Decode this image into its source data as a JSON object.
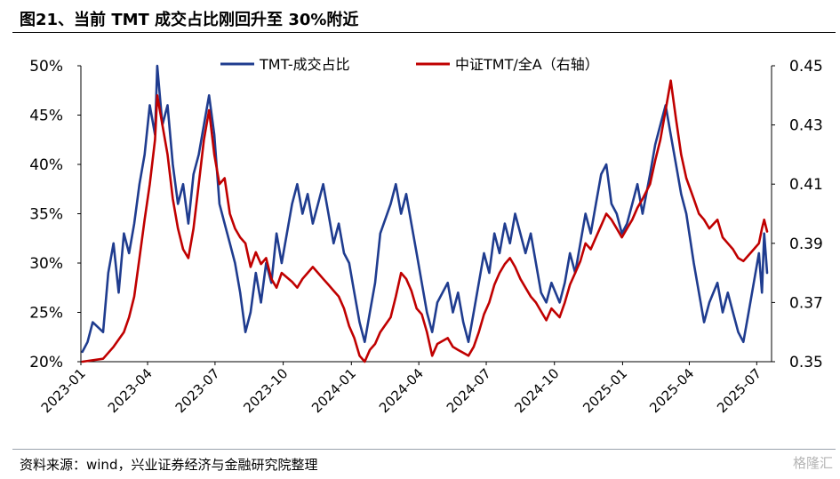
{
  "title": "图21、当前 TMT 成交占比刚回升至 30%附近",
  "source": "资料来源：wind，兴业证券经济与金融研究院整理",
  "watermark": "格隆汇",
  "chart_data": {
    "type": "line",
    "title": "图21、当前 TMT 成交占比刚回升至 30%附近",
    "x_ticks": [
      "2023-01",
      "2023-04",
      "2023-07",
      "2023-10",
      "2024-01",
      "2024-04",
      "2024-07",
      "2024-10",
      "2025-01",
      "2025-04",
      "2025-07"
    ],
    "x_range": [
      "2023-01",
      "2025-07"
    ],
    "y_left": {
      "ticks": [
        "20%",
        "25%",
        "30%",
        "35%",
        "40%",
        "45%",
        "50%"
      ],
      "range": [
        0.2,
        0.5
      ]
    },
    "y_right": {
      "ticks": [
        "0.35",
        "0.37",
        "0.39",
        "0.41",
        "0.43",
        "0.45"
      ],
      "range": [
        0.35,
        0.45
      ]
    },
    "legend_position": "top-center",
    "grid": false,
    "series": [
      {
        "name": "TMT-成交占比",
        "axis": "left",
        "color": "#1f3c8f",
        "points": [
          [
            "2023-01-03",
            0.21
          ],
          [
            "2023-01-10",
            0.22
          ],
          [
            "2023-01-17",
            0.24
          ],
          [
            "2023-01-31",
            0.23
          ],
          [
            "2023-02-07",
            0.29
          ],
          [
            "2023-02-14",
            0.32
          ],
          [
            "2023-02-21",
            0.27
          ],
          [
            "2023-02-28",
            0.33
          ],
          [
            "2023-03-07",
            0.31
          ],
          [
            "2023-03-14",
            0.34
          ],
          [
            "2023-03-21",
            0.38
          ],
          [
            "2023-03-28",
            0.41
          ],
          [
            "2023-04-04",
            0.46
          ],
          [
            "2023-04-11",
            0.43
          ],
          [
            "2023-04-14",
            0.5
          ],
          [
            "2023-04-21",
            0.44
          ],
          [
            "2023-04-28",
            0.46
          ],
          [
            "2023-05-05",
            0.4
          ],
          [
            "2023-05-12",
            0.36
          ],
          [
            "2023-05-19",
            0.38
          ],
          [
            "2023-05-26",
            0.34
          ],
          [
            "2023-06-02",
            0.39
          ],
          [
            "2023-06-09",
            0.41
          ],
          [
            "2023-06-16",
            0.44
          ],
          [
            "2023-06-23",
            0.47
          ],
          [
            "2023-06-30",
            0.43
          ],
          [
            "2023-07-07",
            0.36
          ],
          [
            "2023-07-14",
            0.34
          ],
          [
            "2023-07-21",
            0.32
          ],
          [
            "2023-07-28",
            0.3
          ],
          [
            "2023-08-04",
            0.27
          ],
          [
            "2023-08-11",
            0.23
          ],
          [
            "2023-08-18",
            0.25
          ],
          [
            "2023-08-25",
            0.29
          ],
          [
            "2023-09-01",
            0.26
          ],
          [
            "2023-09-08",
            0.3
          ],
          [
            "2023-09-15",
            0.28
          ],
          [
            "2023-09-22",
            0.33
          ],
          [
            "2023-09-29",
            0.3
          ],
          [
            "2023-10-13",
            0.36
          ],
          [
            "2023-10-20",
            0.38
          ],
          [
            "2023-10-27",
            0.35
          ],
          [
            "2023-11-03",
            0.37
          ],
          [
            "2023-11-10",
            0.34
          ],
          [
            "2023-11-17",
            0.36
          ],
          [
            "2023-11-24",
            0.38
          ],
          [
            "2023-12-01",
            0.35
          ],
          [
            "2023-12-08",
            0.32
          ],
          [
            "2023-12-15",
            0.34
          ],
          [
            "2023-12-22",
            0.31
          ],
          [
            "2023-12-29",
            0.3
          ],
          [
            "2024-01-05",
            0.27
          ],
          [
            "2024-01-12",
            0.24
          ],
          [
            "2024-01-19",
            0.22
          ],
          [
            "2024-01-26",
            0.25
          ],
          [
            "2024-02-02",
            0.28
          ],
          [
            "2024-02-09",
            0.33
          ],
          [
            "2024-02-23",
            0.36
          ],
          [
            "2024-03-01",
            0.38
          ],
          [
            "2024-03-08",
            0.35
          ],
          [
            "2024-03-15",
            0.37
          ],
          [
            "2024-03-22",
            0.34
          ],
          [
            "2024-03-29",
            0.31
          ],
          [
            "2024-04-05",
            0.28
          ],
          [
            "2024-04-12",
            0.25
          ],
          [
            "2024-04-19",
            0.23
          ],
          [
            "2024-04-26",
            0.26
          ],
          [
            "2024-05-10",
            0.28
          ],
          [
            "2024-05-17",
            0.25
          ],
          [
            "2024-05-24",
            0.27
          ],
          [
            "2024-05-31",
            0.24
          ],
          [
            "2024-06-07",
            0.22
          ],
          [
            "2024-06-14",
            0.25
          ],
          [
            "2024-06-21",
            0.28
          ],
          [
            "2024-06-28",
            0.31
          ],
          [
            "2024-07-05",
            0.29
          ],
          [
            "2024-07-12",
            0.33
          ],
          [
            "2024-07-19",
            0.31
          ],
          [
            "2024-07-26",
            0.34
          ],
          [
            "2024-08-02",
            0.32
          ],
          [
            "2024-08-09",
            0.35
          ],
          [
            "2024-08-16",
            0.33
          ],
          [
            "2024-08-23",
            0.31
          ],
          [
            "2024-08-30",
            0.33
          ],
          [
            "2024-09-06",
            0.3
          ],
          [
            "2024-09-13",
            0.27
          ],
          [
            "2024-09-20",
            0.26
          ],
          [
            "2024-09-27",
            0.28
          ],
          [
            "2024-10-08",
            0.26
          ],
          [
            "2024-10-15",
            0.28
          ],
          [
            "2024-10-22",
            0.31
          ],
          [
            "2024-10-29",
            0.29
          ],
          [
            "2024-11-05",
            0.32
          ],
          [
            "2024-11-12",
            0.35
          ],
          [
            "2024-11-19",
            0.33
          ],
          [
            "2024-11-26",
            0.36
          ],
          [
            "2024-12-03",
            0.39
          ],
          [
            "2024-12-10",
            0.4
          ],
          [
            "2024-12-17",
            0.36
          ],
          [
            "2024-12-24",
            0.35
          ],
          [
            "2024-12-31",
            0.33
          ],
          [
            "2025-01-07",
            0.34
          ],
          [
            "2025-01-14",
            0.36
          ],
          [
            "2025-01-21",
            0.38
          ],
          [
            "2025-01-28",
            0.35
          ],
          [
            "2025-02-07",
            0.39
          ],
          [
            "2025-02-14",
            0.42
          ],
          [
            "2025-02-21",
            0.44
          ],
          [
            "2025-02-28",
            0.46
          ],
          [
            "2025-03-07",
            0.43
          ],
          [
            "2025-03-14",
            0.4
          ],
          [
            "2025-03-21",
            0.37
          ],
          [
            "2025-03-28",
            0.35
          ],
          [
            "2025-04-07",
            0.3
          ],
          [
            "2025-04-14",
            0.27
          ],
          [
            "2025-04-21",
            0.24
          ],
          [
            "2025-04-28",
            0.26
          ],
          [
            "2025-05-09",
            0.28
          ],
          [
            "2025-05-16",
            0.25
          ],
          [
            "2025-05-23",
            0.27
          ],
          [
            "2025-05-30",
            0.25
          ],
          [
            "2025-06-06",
            0.23
          ],
          [
            "2025-06-13",
            0.22
          ],
          [
            "2025-06-20",
            0.25
          ],
          [
            "2025-06-27",
            0.28
          ],
          [
            "2025-07-04",
            0.31
          ],
          [
            "2025-07-08",
            0.27
          ],
          [
            "2025-07-11",
            0.33
          ],
          [
            "2025-07-15",
            0.29
          ]
        ]
      },
      {
        "name": "中证TMT/全A（右轴）",
        "axis": "right",
        "color": "#c00000",
        "points": [
          [
            "2023-01-03",
            0.349
          ],
          [
            "2023-01-31",
            0.351
          ],
          [
            "2023-02-14",
            0.355
          ],
          [
            "2023-02-28",
            0.36
          ],
          [
            "2023-03-07",
            0.365
          ],
          [
            "2023-03-14",
            0.372
          ],
          [
            "2023-03-21",
            0.385
          ],
          [
            "2023-03-28",
            0.398
          ],
          [
            "2023-04-04",
            0.41
          ],
          [
            "2023-04-11",
            0.425
          ],
          [
            "2023-04-14",
            0.44
          ],
          [
            "2023-04-21",
            0.43
          ],
          [
            "2023-04-28",
            0.42
          ],
          [
            "2023-05-05",
            0.405
          ],
          [
            "2023-05-12",
            0.395
          ],
          [
            "2023-05-19",
            0.388
          ],
          [
            "2023-05-26",
            0.385
          ],
          [
            "2023-06-02",
            0.395
          ],
          [
            "2023-06-09",
            0.41
          ],
          [
            "2023-06-16",
            0.425
          ],
          [
            "2023-06-23",
            0.435
          ],
          [
            "2023-06-30",
            0.42
          ],
          [
            "2023-07-07",
            0.41
          ],
          [
            "2023-07-14",
            0.412
          ],
          [
            "2023-07-21",
            0.4
          ],
          [
            "2023-07-28",
            0.395
          ],
          [
            "2023-08-04",
            0.392
          ],
          [
            "2023-08-11",
            0.39
          ],
          [
            "2023-08-18",
            0.382
          ],
          [
            "2023-08-25",
            0.387
          ],
          [
            "2023-09-01",
            0.383
          ],
          [
            "2023-09-08",
            0.385
          ],
          [
            "2023-09-15",
            0.378
          ],
          [
            "2023-09-22",
            0.375
          ],
          [
            "2023-09-29",
            0.38
          ],
          [
            "2023-10-13",
            0.377
          ],
          [
            "2023-10-20",
            0.375
          ],
          [
            "2023-10-27",
            0.378
          ],
          [
            "2023-11-03",
            0.38
          ],
          [
            "2023-11-10",
            0.382
          ],
          [
            "2023-11-17",
            0.38
          ],
          [
            "2023-11-24",
            0.378
          ],
          [
            "2023-12-01",
            0.376
          ],
          [
            "2023-12-08",
            0.374
          ],
          [
            "2023-12-15",
            0.372
          ],
          [
            "2023-12-22",
            0.368
          ],
          [
            "2023-12-29",
            0.362
          ],
          [
            "2024-01-05",
            0.358
          ],
          [
            "2024-01-12",
            0.352
          ],
          [
            "2024-01-19",
            0.35
          ],
          [
            "2024-01-26",
            0.354
          ],
          [
            "2024-02-02",
            0.356
          ],
          [
            "2024-02-09",
            0.36
          ],
          [
            "2024-02-23",
            0.365
          ],
          [
            "2024-03-01",
            0.372
          ],
          [
            "2024-03-08",
            0.38
          ],
          [
            "2024-03-15",
            0.378
          ],
          [
            "2024-03-22",
            0.374
          ],
          [
            "2024-03-29",
            0.368
          ],
          [
            "2024-04-05",
            0.366
          ],
          [
            "2024-04-12",
            0.36
          ],
          [
            "2024-04-19",
            0.352
          ],
          [
            "2024-04-26",
            0.356
          ],
          [
            "2024-05-10",
            0.358
          ],
          [
            "2024-05-17",
            0.355
          ],
          [
            "2024-05-24",
            0.354
          ],
          [
            "2024-05-31",
            0.353
          ],
          [
            "2024-06-07",
            0.352
          ],
          [
            "2024-06-14",
            0.355
          ],
          [
            "2024-06-21",
            0.36
          ],
          [
            "2024-06-28",
            0.366
          ],
          [
            "2024-07-05",
            0.37
          ],
          [
            "2024-07-12",
            0.376
          ],
          [
            "2024-07-19",
            0.38
          ],
          [
            "2024-07-26",
            0.383
          ],
          [
            "2024-08-02",
            0.385
          ],
          [
            "2024-08-09",
            0.382
          ],
          [
            "2024-08-16",
            0.378
          ],
          [
            "2024-08-23",
            0.375
          ],
          [
            "2024-08-30",
            0.372
          ],
          [
            "2024-09-06",
            0.37
          ],
          [
            "2024-09-13",
            0.367
          ],
          [
            "2024-09-20",
            0.364
          ],
          [
            "2024-09-27",
            0.368
          ],
          [
            "2024-10-08",
            0.365
          ],
          [
            "2024-10-15",
            0.37
          ],
          [
            "2024-10-22",
            0.376
          ],
          [
            "2024-10-29",
            0.38
          ],
          [
            "2024-11-05",
            0.384
          ],
          [
            "2024-11-12",
            0.39
          ],
          [
            "2024-11-19",
            0.388
          ],
          [
            "2024-11-26",
            0.392
          ],
          [
            "2024-12-03",
            0.396
          ],
          [
            "2024-12-10",
            0.4
          ],
          [
            "2024-12-17",
            0.398
          ],
          [
            "2024-12-24",
            0.395
          ],
          [
            "2024-12-31",
            0.392
          ],
          [
            "2025-01-07",
            0.395
          ],
          [
            "2025-01-14",
            0.398
          ],
          [
            "2025-01-21",
            0.402
          ],
          [
            "2025-01-28",
            0.405
          ],
          [
            "2025-02-07",
            0.41
          ],
          [
            "2025-02-14",
            0.418
          ],
          [
            "2025-02-21",
            0.425
          ],
          [
            "2025-02-28",
            0.435
          ],
          [
            "2025-03-07",
            0.445
          ],
          [
            "2025-03-14",
            0.432
          ],
          [
            "2025-03-21",
            0.42
          ],
          [
            "2025-03-28",
            0.412
          ],
          [
            "2025-04-07",
            0.405
          ],
          [
            "2025-04-14",
            0.4
          ],
          [
            "2025-04-21",
            0.398
          ],
          [
            "2025-04-28",
            0.395
          ],
          [
            "2025-05-09",
            0.398
          ],
          [
            "2025-05-16",
            0.392
          ],
          [
            "2025-05-23",
            0.39
          ],
          [
            "2025-05-30",
            0.388
          ],
          [
            "2025-06-06",
            0.385
          ],
          [
            "2025-06-13",
            0.384
          ],
          [
            "2025-06-20",
            0.386
          ],
          [
            "2025-06-27",
            0.388
          ],
          [
            "2025-07-04",
            0.39
          ],
          [
            "2025-07-08",
            0.395
          ],
          [
            "2025-07-11",
            0.398
          ],
          [
            "2025-07-15",
            0.394
          ]
        ]
      }
    ]
  }
}
